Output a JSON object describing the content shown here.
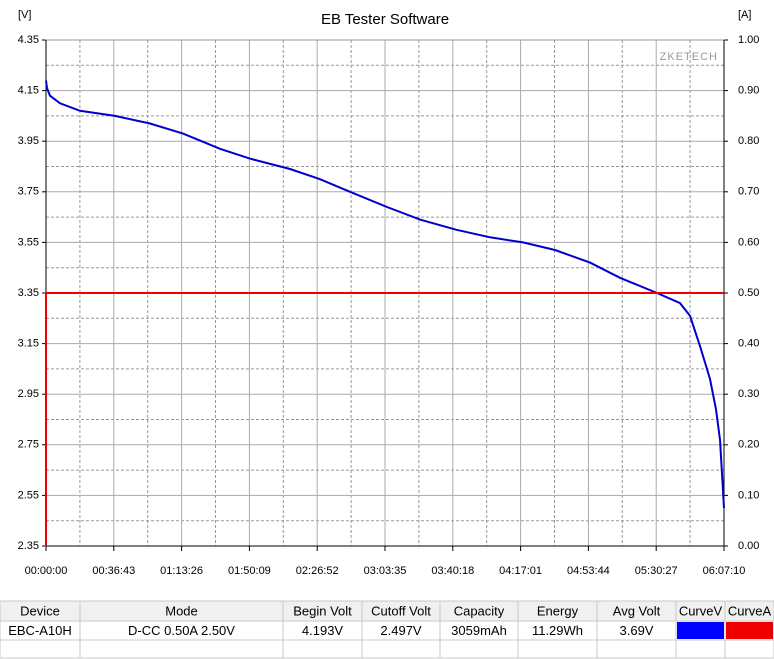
{
  "chart_data": {
    "type": "line",
    "title": "EB Tester Software",
    "ylabel": "[V]",
    "y2label": "[A]",
    "annotation": "ZKETECH",
    "xlim": [
      0,
      22030
    ],
    "xticks": [
      {
        "value": 0,
        "label": "00:00:00"
      },
      {
        "value": 2203,
        "label": "00:36:43"
      },
      {
        "value": 4406,
        "label": "01:13:26"
      },
      {
        "value": 6609,
        "label": "01:50:09"
      },
      {
        "value": 8812,
        "label": "02:26:52"
      },
      {
        "value": 11015,
        "label": "03:03:35"
      },
      {
        "value": 13218,
        "label": "03:40:18"
      },
      {
        "value": 15421,
        "label": "04:17:01"
      },
      {
        "value": 17624,
        "label": "04:53:44"
      },
      {
        "value": 19827,
        "label": "05:30:27"
      },
      {
        "value": 22030,
        "label": "06:07:10"
      }
    ],
    "ylim": [
      2.35,
      4.35
    ],
    "yticks": [
      2.35,
      2.55,
      2.75,
      2.95,
      3.15,
      3.35,
      3.55,
      3.75,
      3.95,
      4.15,
      4.35
    ],
    "y2lim": [
      0,
      1
    ],
    "y2ticks": [
      {
        "value": 0,
        "label": "0.00"
      },
      {
        "value": 0.1,
        "label": "0.10"
      },
      {
        "value": 0.2,
        "label": "0.20"
      },
      {
        "value": 0.3,
        "label": "0.30"
      },
      {
        "value": 0.4,
        "label": "0.40"
      },
      {
        "value": 0.5,
        "label": "0.50"
      },
      {
        "value": 0.6,
        "label": "0.60"
      },
      {
        "value": 0.7,
        "label": "0.70"
      },
      {
        "value": 0.8,
        "label": "0.80"
      },
      {
        "value": 0.9,
        "label": "0.90"
      },
      {
        "value": 1,
        "label": "1.00"
      }
    ],
    "grid": true,
    "series": [
      {
        "color": "#0000cc",
        "x": [
          0,
          32,
          130,
          455,
          1105,
          2242,
          3379,
          4451,
          5654,
          6661,
          7928,
          8903,
          9878,
          11080,
          12152,
          13322,
          14427,
          15499,
          16539,
          17676,
          18651,
          19853,
          20600,
          20925,
          21250,
          21575,
          21770,
          21900,
          22030
        ],
        "values": [
          4.19,
          4.16,
          4.13,
          4.1,
          4.07,
          4.05,
          4.02,
          3.98,
          3.92,
          3.88,
          3.84,
          3.8,
          3.75,
          3.69,
          3.64,
          3.6,
          3.57,
          3.55,
          3.52,
          3.47,
          3.41,
          3.35,
          3.31,
          3.26,
          3.14,
          3.01,
          2.89,
          2.77,
          2.5
        ]
      },
      {
        "color": "#ee0000",
        "axis": "y2",
        "x": [
          0,
          0,
          22030
        ],
        "values": [
          0,
          0.5,
          0.5
        ]
      }
    ]
  },
  "table": {
    "headers": [
      "Device",
      "Mode",
      "Begin Volt",
      "Cutoff Volt",
      "Capacity",
      "Energy",
      "Avg Volt",
      "CurveV",
      "CurveA"
    ],
    "rows": [
      [
        "EBC-A10H",
        "D-CC  0.50A  2.50V",
        "4.193V",
        "2.497V",
        "3059mAh",
        "11.29Wh",
        "3.69V"
      ]
    ]
  }
}
